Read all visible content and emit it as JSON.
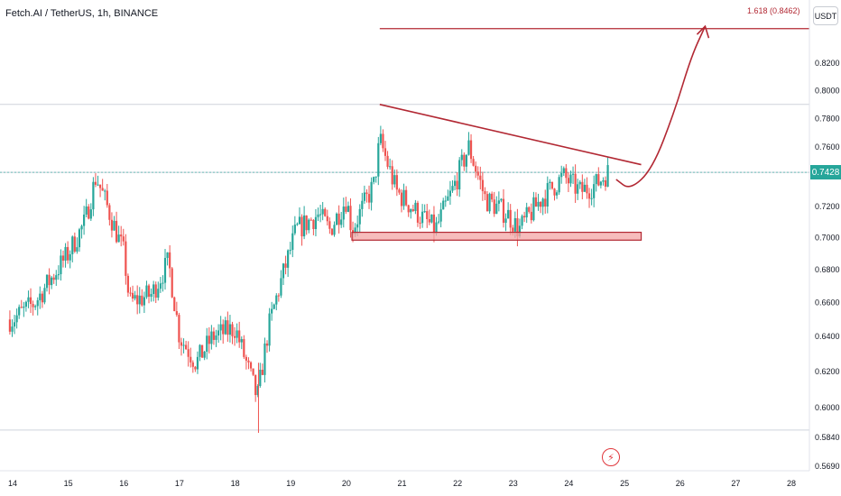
{
  "header": {
    "symbol_title": "Fetch.AI / TetherUS, 1h, BINANCE",
    "unit": "USDT"
  },
  "colors": {
    "up": "#26a69a",
    "down": "#ef5350",
    "drawing": "#b22833",
    "support_fill": "#f4a6a6",
    "last_price_bg": "#26a69a",
    "fib_price_bg": "#b22833"
  },
  "price_tags": {
    "last_price": "0.7428"
  },
  "annotations": {
    "fib_label": "1.618 (0.8462)",
    "flash_icon": "lightning-icon"
  },
  "chart_data": {
    "type": "candlestick",
    "y_scale": "log",
    "ylim": [
      0.569,
      0.86
    ],
    "xlim": [
      13.9,
      28.3
    ],
    "price_ticks": [
      "0.8200",
      "0.8000",
      "0.7800",
      "0.7600",
      "0.7200",
      "0.7000",
      "0.6800",
      "0.6600",
      "0.6400",
      "0.6200",
      "0.6000",
      "0.5840",
      "0.5690"
    ],
    "date_ticks": [
      "14",
      "15",
      "16",
      "17",
      "18",
      "19",
      "20",
      "21",
      "22",
      "23",
      "24",
      "25",
      "26",
      "27",
      "28"
    ],
    "key_points": [
      {
        "day": 14.0,
        "price": 0.65
      },
      {
        "day": 14.4,
        "price": 0.66
      },
      {
        "day": 15.0,
        "price": 0.69
      },
      {
        "day": 15.3,
        "price": 0.71
      },
      {
        "day": 15.5,
        "price": 0.74
      },
      {
        "day": 16.0,
        "price": 0.69
      },
      {
        "day": 16.1,
        "price": 0.66
      },
      {
        "day": 16.5,
        "price": 0.665
      },
      {
        "day": 16.8,
        "price": 0.685
      },
      {
        "day": 17.0,
        "price": 0.64
      },
      {
        "day": 17.3,
        "price": 0.625
      },
      {
        "day": 17.6,
        "price": 0.64
      },
      {
        "day": 18.0,
        "price": 0.645
      },
      {
        "day": 18.4,
        "price": 0.605
      },
      {
        "day": 18.6,
        "price": 0.645
      },
      {
        "day": 18.8,
        "price": 0.67
      },
      {
        "day": 19.1,
        "price": 0.705
      },
      {
        "day": 19.5,
        "price": 0.715
      },
      {
        "day": 19.7,
        "price": 0.705
      },
      {
        "day": 20.0,
        "price": 0.725
      },
      {
        "day": 20.1,
        "price": 0.705
      },
      {
        "day": 20.5,
        "price": 0.735
      },
      {
        "day": 20.6,
        "price": 0.765
      },
      {
        "day": 20.9,
        "price": 0.73
      },
      {
        "day": 21.3,
        "price": 0.715
      },
      {
        "day": 21.6,
        "price": 0.705
      },
      {
        "day": 21.9,
        "price": 0.73
      },
      {
        "day": 22.2,
        "price": 0.76
      },
      {
        "day": 22.5,
        "price": 0.725
      },
      {
        "day": 22.9,
        "price": 0.715
      },
      {
        "day": 23.1,
        "price": 0.705
      },
      {
        "day": 23.5,
        "price": 0.725
      },
      {
        "day": 23.9,
        "price": 0.74
      },
      {
        "day": 24.2,
        "price": 0.73
      },
      {
        "day": 24.5,
        "price": 0.735
      },
      {
        "day": 24.7,
        "price": 0.7428
      }
    ],
    "drawings": {
      "resistance_line": {
        "start": {
          "day": 20.6,
          "price": 0.79
        },
        "end": {
          "day": 25.3,
          "price": 0.748
        }
      },
      "support_zone": {
        "start_day": 20.1,
        "end_day": 25.3,
        "low": 0.6985,
        "high": 0.7035
      },
      "fib_level": {
        "start_day": 20.6,
        "end_day": 28.3,
        "price": 0.8462
      },
      "projection_curve": [
        {
          "day": 24.85,
          "price": 0.738
        },
        {
          "day": 25.1,
          "price": 0.731
        },
        {
          "day": 25.5,
          "price": 0.745
        },
        {
          "day": 25.9,
          "price": 0.785
        },
        {
          "day": 26.2,
          "price": 0.825
        },
        {
          "day": 26.45,
          "price": 0.848
        }
      ]
    },
    "reference_lines": [
      0.79,
      0.7428,
      0.588
    ]
  }
}
